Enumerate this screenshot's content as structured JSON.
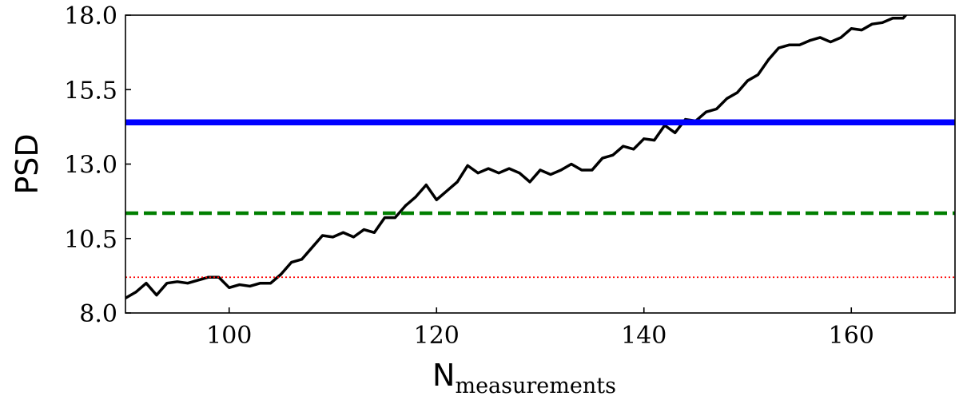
{
  "chart_data": {
    "type": "line",
    "xlabel": "N",
    "xlabel_subscript": "measurements",
    "ylabel": "PSD",
    "xlim": [
      90,
      170
    ],
    "ylim": [
      8.0,
      18.0
    ],
    "xticks": [
      100,
      120,
      140,
      160
    ],
    "yticks": [
      8.0,
      10.5,
      13.0,
      15.5,
      18.0
    ],
    "xtick_labels": [
      "100",
      "120",
      "140",
      "160"
    ],
    "ytick_labels": [
      "8.0",
      "10.5",
      "13.0",
      "15.5",
      "18.0"
    ],
    "grid": false,
    "series": [
      {
        "color": "#000000",
        "style": "solid",
        "x": [
          90,
          91,
          92,
          93,
          94,
          95,
          96,
          97,
          98,
          99,
          100,
          101,
          102,
          103,
          104,
          105,
          106,
          107,
          108,
          109,
          110,
          111,
          112,
          113,
          114,
          115,
          116,
          117,
          118,
          119,
          120,
          121,
          122,
          123,
          124,
          125,
          126,
          127,
          128,
          129,
          130,
          131,
          132,
          133,
          134,
          135,
          136,
          137,
          138,
          139,
          140,
          141,
          142,
          143,
          144,
          145,
          146,
          147,
          148,
          149,
          150,
          151,
          152,
          153,
          154,
          155,
          156,
          157,
          158,
          159,
          160,
          161,
          162,
          163,
          164,
          165,
          166,
          167,
          168,
          169,
          170
        ],
        "values": [
          8.5,
          8.7,
          9.0,
          8.6,
          9.0,
          9.05,
          9.0,
          9.1,
          9.2,
          9.2,
          8.85,
          8.95,
          8.9,
          9.0,
          9.0,
          9.3,
          9.7,
          9.8,
          10.2,
          10.6,
          10.55,
          10.7,
          10.55,
          10.8,
          10.7,
          11.2,
          11.2,
          11.6,
          11.9,
          12.3,
          11.8,
          12.1,
          12.4,
          12.95,
          12.7,
          12.85,
          12.7,
          12.85,
          12.7,
          12.4,
          12.8,
          12.65,
          12.8,
          13.0,
          12.8,
          12.8,
          13.2,
          13.3,
          13.6,
          13.5,
          13.85,
          13.8,
          14.3,
          14.05,
          14.5,
          14.45,
          14.75,
          14.85,
          15.2,
          15.4,
          15.8,
          16.0,
          16.5,
          16.9,
          17.0,
          17.0,
          17.15,
          17.25,
          17.1,
          17.25,
          17.55,
          17.5,
          17.7,
          17.75,
          17.9,
          17.9,
          18.3,
          18.2,
          18.1,
          18.1,
          18.3
        ]
      },
      {
        "color": "#0000ff",
        "style": "solid-thick",
        "constant": 14.4
      },
      {
        "color": "#007f00",
        "style": "dashed",
        "constant": 11.35
      },
      {
        "color": "#ff0000",
        "style": "dotted",
        "constant": 9.2
      }
    ]
  }
}
